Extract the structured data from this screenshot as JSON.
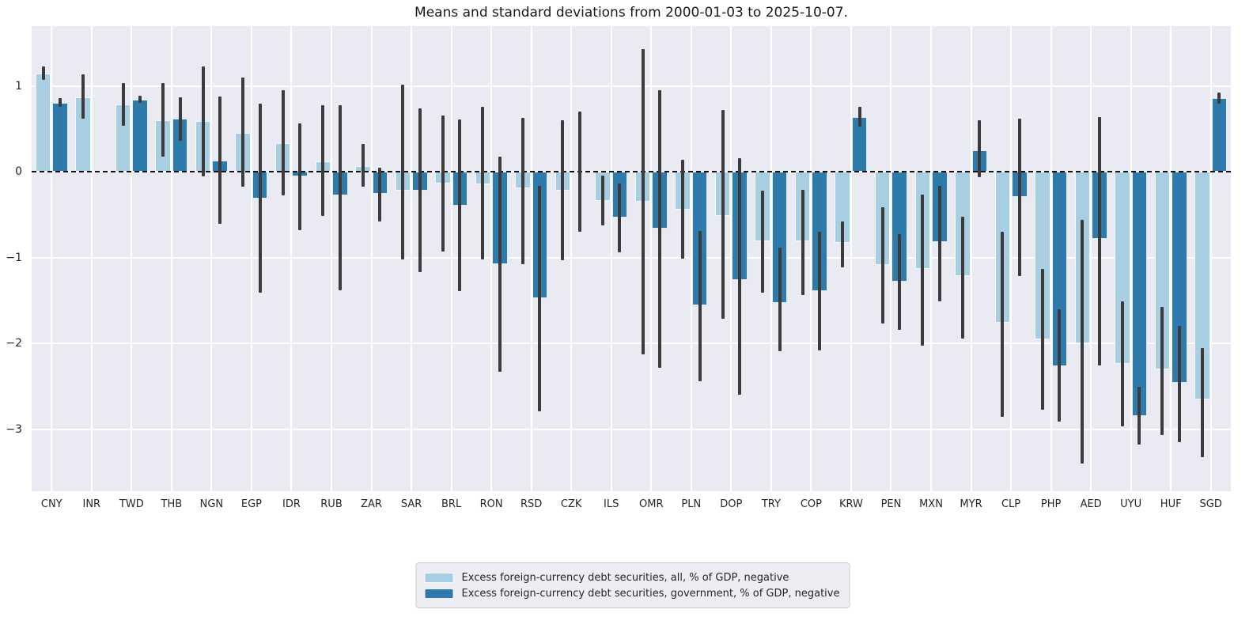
{
  "chart_data": {
    "type": "bar",
    "title": "Means and standard deviations from 2000-01-03 to 2025-10-07.",
    "categories": [
      "CNY",
      "INR",
      "TWD",
      "THB",
      "NGN",
      "EGP",
      "IDR",
      "RUB",
      "ZAR",
      "SAR",
      "BRL",
      "RON",
      "RSD",
      "CZK",
      "ILS",
      "OMR",
      "PLN",
      "DOP",
      "TRY",
      "COP",
      "KRW",
      "PEN",
      "MXN",
      "MYR",
      "CLP",
      "PHP",
      "AED",
      "UYU",
      "HUF",
      "SGD"
    ],
    "series": [
      {
        "name": "Excess foreign-currency debt securities, all, % of GDP, negative",
        "color": "#a8cee1",
        "means": [
          1.15,
          0.87,
          0.79,
          0.6,
          0.59,
          0.46,
          0.34,
          0.12,
          0.07,
          -0.22,
          -0.13,
          -0.14,
          -0.19,
          -0.22,
          -0.34,
          -0.35,
          -0.44,
          -0.51,
          -0.81,
          -0.81,
          -0.83,
          -1.08,
          -1.13,
          -1.21,
          -1.76,
          -1.95,
          -2.0,
          -2.24,
          -2.3,
          -2.65
        ],
        "err_low": [
          1.07,
          0.62,
          0.54,
          0.18,
          -0.05,
          -0.17,
          -0.27,
          -0.51,
          -0.17,
          -1.02,
          -0.93,
          -1.02,
          -1.07,
          -1.03,
          -0.62,
          -2.13,
          -1.01,
          -1.71,
          -1.41,
          -1.43,
          -1.11,
          -1.77,
          -2.02,
          -1.94,
          -2.85,
          -2.77,
          -3.4,
          -2.96,
          -3.07,
          -3.32
        ],
        "err_high": [
          1.23,
          1.14,
          1.04,
          1.04,
          1.23,
          1.1,
          0.95,
          0.78,
          0.33,
          1.02,
          0.66,
          0.76,
          0.63,
          0.6,
          -0.04,
          1.43,
          0.14,
          0.72,
          -0.22,
          -0.21,
          -0.58,
          -0.41,
          -0.26,
          -0.52,
          -0.7,
          -1.13,
          -0.56,
          -1.51,
          -1.57,
          -2.05
        ]
      },
      {
        "name": "Excess foreign-currency debt securities, government, % of GDP, negative",
        "color": "#2e7bab",
        "means": [
          0.81,
          null,
          0.84,
          0.62,
          0.13,
          -0.31,
          -0.05,
          -0.27,
          -0.25,
          -0.22,
          -0.39,
          -1.07,
          -1.47,
          0.0,
          -0.53,
          -0.66,
          -1.55,
          -1.26,
          -1.53,
          -1.39,
          0.64,
          -1.28,
          -0.82,
          0.25,
          -0.29,
          -2.26,
          -0.78,
          -2.84,
          -2.46,
          0.86
        ],
        "err_low": [
          0.76,
          null,
          0.81,
          0.36,
          -0.6,
          -1.41,
          -0.68,
          -1.38,
          -0.58,
          -1.17,
          -1.39,
          -2.33,
          -2.79,
          -0.7,
          -0.94,
          -2.28,
          -2.44,
          -2.6,
          -2.09,
          -2.08,
          0.53,
          -1.84,
          -1.51,
          -0.06,
          -1.21,
          -2.91,
          -2.25,
          -3.18,
          -3.15,
          0.8
        ],
        "err_high": [
          0.86,
          null,
          0.89,
          0.87,
          0.88,
          0.8,
          0.57,
          0.78,
          0.05,
          0.74,
          0.61,
          0.18,
          -0.16,
          0.7,
          -0.13,
          0.95,
          -0.69,
          0.16,
          -0.88,
          -0.7,
          0.76,
          -0.72,
          -0.16,
          0.6,
          0.62,
          -1.6,
          0.64,
          -2.5,
          -1.79,
          0.93
        ]
      }
    ],
    "ylim": [
      -3.72,
      1.7
    ],
    "yticks": [
      {
        "value": 1,
        "label": "1"
      },
      {
        "value": 0,
        "label": "0"
      },
      {
        "value": -1,
        "label": "−1"
      },
      {
        "value": -2,
        "label": "−2"
      },
      {
        "value": -3,
        "label": "−3"
      }
    ],
    "zero_line_dashed": true,
    "grid": true,
    "legend_position": "bottom-center",
    "colors": {
      "plot_background": "#eaeaf2",
      "gridline": "#ffffff",
      "error_bar": "#3b3b3b",
      "text": "#262626",
      "legend_background": "#ededf4",
      "legend_border": "#cccccc"
    }
  }
}
